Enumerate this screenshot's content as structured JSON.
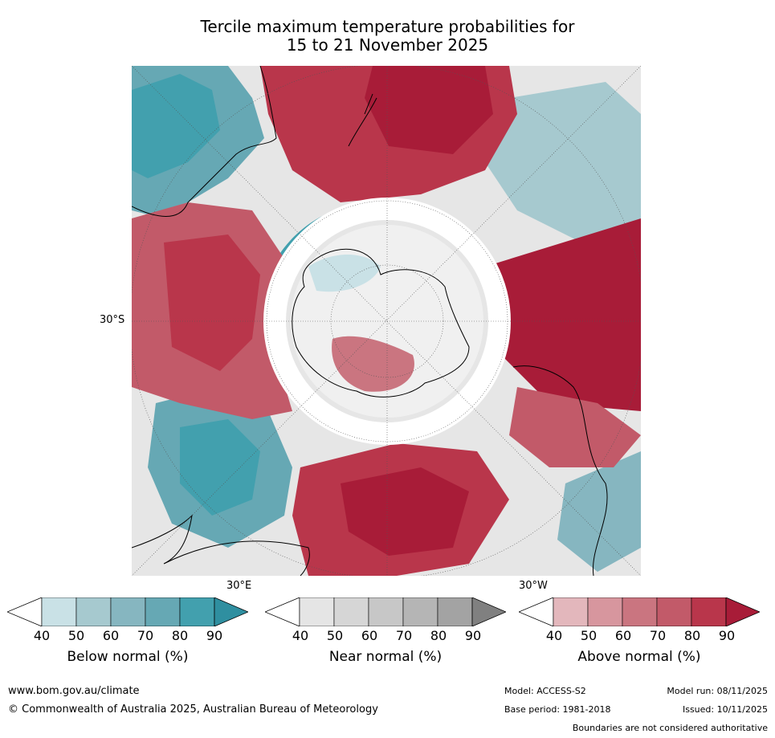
{
  "title_line1": "Tercile maximum temperature probabilities for",
  "title_line2": "15 to 21 November 2025",
  "map": {
    "lat_label": "30°S",
    "lon_label_east": "30°E",
    "lon_label_west": "30°W",
    "colors": {
      "below": [
        "#c9e1e6",
        "#a6c9cf",
        "#86b6c0",
        "#66a8b4",
        "#42a0ae",
        "#2f8fa0"
      ],
      "near": [
        "#e5e5e5",
        "#d6d6d6",
        "#c7c7c7",
        "#b5b5b5",
        "#a3a3a3",
        "#808080"
      ],
      "above": [
        "#e3b7bc",
        "#d7969e",
        "#ca7580",
        "#c25a69",
        "#b9364b",
        "#a81c38"
      ]
    }
  },
  "colorbars": [
    {
      "id": "below",
      "label": "Below normal (%)",
      "ticks": [
        "40",
        "50",
        "60",
        "70",
        "80",
        "90"
      ]
    },
    {
      "id": "near",
      "label": "Near normal (%)",
      "ticks": [
        "40",
        "50",
        "60",
        "70",
        "80",
        "90"
      ]
    },
    {
      "id": "above",
      "label": "Above normal (%)",
      "ticks": [
        "40",
        "50",
        "60",
        "70",
        "80",
        "90"
      ]
    }
  ],
  "footer": {
    "website": "www.bom.gov.au/climate",
    "copyright": "© Commonwealth of Australia 2025, Australian Bureau of Meteorology",
    "model": "Model: ACCESS-S2",
    "base_period": "Base period: 1981-2018",
    "model_run": "Model run: 08/11/2025",
    "issued": "Issued: 10/11/2025",
    "disclaimer": "Boundaries are not considered authoritative"
  }
}
